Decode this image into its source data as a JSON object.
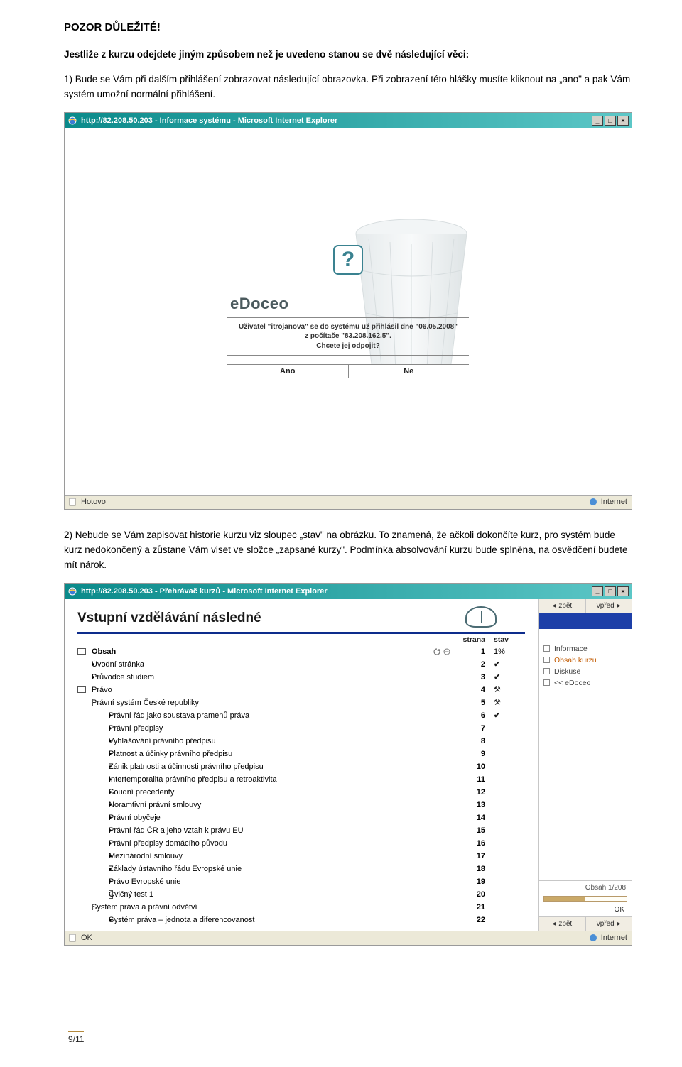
{
  "colors": {
    "titlebar_gradient_from": "#0a8a8a",
    "titlebar_gradient_to": "#5cc7c7",
    "blue_stripe": "#1d3fa8",
    "accent_orange": "#c25a00",
    "teal_dark": "#3a8290",
    "status_bg": "#ece9d8"
  },
  "doc": {
    "heading": "POZOR DŮLEŽITÉ!",
    "para1": "Jestliže z kurzu odejdete jiným způsobem než je uvedeno stanou se  dvě následující věci:",
    "para2": "1) Bude se Vám při dalším přihlášení zobrazovat následující obrazovka. Při zobrazení této hlášky musíte kliknout na „ano\" a pak Vám systém umožní normální přihlášení.",
    "para3": "2) Nebude se Vám  zapisovat historie kurzu viz sloupec „stav\" na obrázku. To znamená, že ačkoli dokončíte kurz, pro systém bude kurz nedokončený a zůstane Vám viset ve složce „zapsané kurzy\". Podmínka absolvování kurzu bude splněna, na osvědčení budete mít nárok.",
    "page_num": "9/11"
  },
  "ie1": {
    "title": "http://82.208.50.203 - Informace systému - Microsoft Internet Explorer",
    "logo": "eDoceo",
    "msg_l1": "Uživatel \"itrojanova\" se do systému už přihlásil dne \"06.05.2008\"",
    "msg_l2": "z počítače \"83.208.162.5\".",
    "msg_l3": "Chcete jej odpojit?",
    "btn_yes": "Ano",
    "btn_no": "Ne",
    "status_left": "Hotovo",
    "status_right": "Internet"
  },
  "ie2": {
    "title": "http://82.208.50.203 - Přehrávač kurzů - Microsoft Internet Explorer",
    "course_title": "Vstupní vzdělávání následné",
    "head_strana": "strana",
    "head_stav": "stav",
    "nav_back": "zpět",
    "nav_fwd": "vpřed",
    "side_links": {
      "informace": "Informace",
      "obsah": "Obsah kurzu",
      "diskuse": "Diskuse",
      "edoceo": "<< eDoceo"
    },
    "footer_progress_label": "Obsah 1/208",
    "progress_pct": 0.5,
    "ok": "OK",
    "status_ok": "OK",
    "status_right": "Internet",
    "obsah_label": "Obsah",
    "rows": [
      {
        "indent": 1,
        "label": "Úvodní stránka",
        "page": "2",
        "state": "tick"
      },
      {
        "indent": 1,
        "label": "Průvodce studiem",
        "page": "3",
        "state": "tick"
      },
      {
        "indent": 0,
        "label": "Právo",
        "ico": "book",
        "page": "4",
        "state": "tools"
      },
      {
        "indent": 1,
        "label": "Právní systém České republiky",
        "ico": "book",
        "page": "5",
        "state": "tools"
      },
      {
        "indent": 2,
        "label": "Právní řád jako soustava pramenů práva",
        "page": "6",
        "state": "tick"
      },
      {
        "indent": 2,
        "label": "Právní předpisy",
        "page": "7",
        "state": ""
      },
      {
        "indent": 2,
        "label": "Vyhlašování právního předpisu",
        "page": "8",
        "state": ""
      },
      {
        "indent": 2,
        "label": "Platnost a účinky právního předpisu",
        "page": "9",
        "state": ""
      },
      {
        "indent": 2,
        "label": "Zánik platnosti a účinnosti právního předpisu",
        "page": "10",
        "state": ""
      },
      {
        "indent": 2,
        "label": "Intertemporalita právního předpisu a retroaktivita",
        "page": "11",
        "state": ""
      },
      {
        "indent": 2,
        "label": "Soudní precedenty",
        "page": "12",
        "state": ""
      },
      {
        "indent": 2,
        "label": "Noramtivní právní smlouvy",
        "page": "13",
        "state": ""
      },
      {
        "indent": 2,
        "label": "Právní obyčeje",
        "page": "14",
        "state": ""
      },
      {
        "indent": 2,
        "label": "Právní řád ČR a jeho vztah k právu EU",
        "page": "15",
        "state": ""
      },
      {
        "indent": 2,
        "label": "Právní předpisy domácího původu",
        "page": "16",
        "state": ""
      },
      {
        "indent": 2,
        "label": "Mezinárodní smlouvy",
        "page": "17",
        "state": ""
      },
      {
        "indent": 2,
        "label": "Základy ústavního řádu Evropské unie",
        "page": "18",
        "state": ""
      },
      {
        "indent": 2,
        "label": "Právo Evropské unie",
        "page": "19",
        "state": ""
      },
      {
        "indent": 2,
        "label": "Cvičný test 1",
        "ico": "q",
        "page": "20",
        "state": ""
      },
      {
        "indent": 1,
        "label": "Systém práva a právní odvětví",
        "ico": "book",
        "page": "21",
        "state": ""
      },
      {
        "indent": 2,
        "label": "Systém práva – jednota a diferencovanost",
        "page": "22",
        "state": ""
      }
    ],
    "first_pct": "1%"
  }
}
